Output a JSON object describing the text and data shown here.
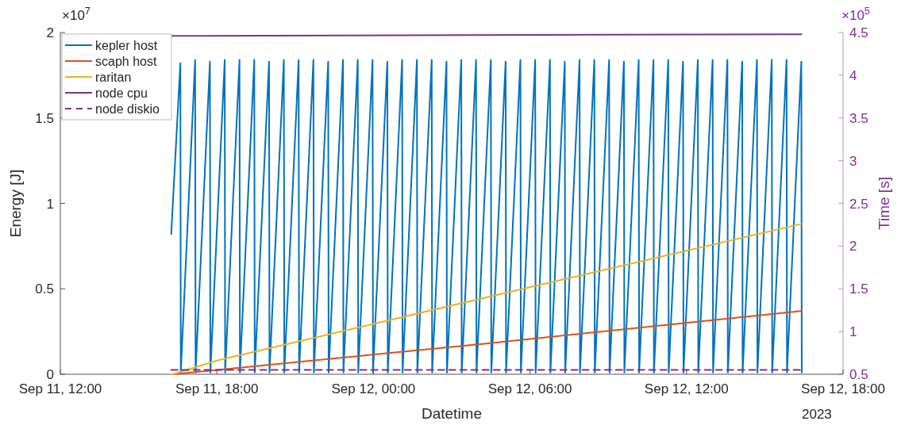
{
  "chart_data": {
    "type": "line",
    "xlabel": "Datetime",
    "ylabel": "Energy [J]",
    "y2label": "Time [s]",
    "annotations": [
      "×10$^{7}$",
      "×10$^{5}$",
      "2023"
    ],
    "xlim": [
      "2023-09-11T12:00",
      "2023-09-12T18:00"
    ],
    "xticks": [
      {
        "value": "2023-09-11T12:00",
        "label": "Sep 11, 12:00"
      },
      {
        "value": "2023-09-11T18:00",
        "label": "Sep 11, 18:00"
      },
      {
        "value": "2023-09-12T00:00",
        "label": "Sep 12, 00:00"
      },
      {
        "value": "2023-09-12T06:00",
        "label": "Sep 12, 06:00"
      },
      {
        "value": "2023-09-12T12:00",
        "label": "Sep 12, 12:00"
      },
      {
        "value": "2023-09-12T18:00",
        "label": "Sep 12, 18:00"
      }
    ],
    "ylim": [
      0,
      2
    ],
    "yticks": [
      0,
      0.5,
      1,
      1.5,
      2
    ],
    "y2lim": [
      0.5,
      4.5
    ],
    "y2ticks": [
      0.5,
      1,
      1.5,
      2,
      2.5,
      3,
      3.5,
      4,
      4.5
    ],
    "grid": false,
    "legend": "top left",
    "line_style": "solid",
    "marker": "none",
    "series": [
      {
        "name": "kepler host",
        "color": "#0072bd",
        "x": [
          "2023-09-11T16:15",
          "2023-09-11T16:36",
          "2023-09-11T16:37",
          "2023-09-11T17:10",
          "2023-09-11T17:11",
          "2023-09-11T17:44",
          "2023-09-11T17:45",
          "2023-09-11T18:18",
          "2023-09-11T18:19",
          "2023-09-11T18:52",
          "2023-09-11T18:53",
          "2023-09-11T19:26",
          "2023-09-11T19:27",
          "2023-09-11T20:00",
          "2023-09-11T20:01",
          "2023-09-11T20:34",
          "2023-09-11T20:35",
          "2023-09-11T21:08",
          "2023-09-11T21:09",
          "2023-09-11T21:42",
          "2023-09-11T21:43",
          "2023-09-11T22:16",
          "2023-09-11T22:17",
          "2023-09-11T22:50",
          "2023-09-11T22:51",
          "2023-09-11T23:24",
          "2023-09-11T23:25",
          "2023-09-11T23:58",
          "2023-09-11T23:59",
          "2023-09-12T00:32",
          "2023-09-12T00:33",
          "2023-09-12T01:06",
          "2023-09-12T01:07",
          "2023-09-12T01:40",
          "2023-09-12T01:41",
          "2023-09-12T02:14",
          "2023-09-12T02:15",
          "2023-09-12T02:48",
          "2023-09-12T02:49",
          "2023-09-12T03:22",
          "2023-09-12T03:23",
          "2023-09-12T03:56",
          "2023-09-12T03:57",
          "2023-09-12T04:30",
          "2023-09-12T04:31",
          "2023-09-12T05:04",
          "2023-09-12T05:05",
          "2023-09-12T05:38",
          "2023-09-12T05:39",
          "2023-09-12T06:12",
          "2023-09-12T06:13",
          "2023-09-12T06:46",
          "2023-09-12T06:47",
          "2023-09-12T07:20",
          "2023-09-12T07:21",
          "2023-09-12T07:54",
          "2023-09-12T07:55",
          "2023-09-12T08:28",
          "2023-09-12T08:29",
          "2023-09-12T09:02",
          "2023-09-12T09:03",
          "2023-09-12T09:36",
          "2023-09-12T09:37",
          "2023-09-12T10:10",
          "2023-09-12T10:11",
          "2023-09-12T10:44",
          "2023-09-12T10:45",
          "2023-09-12T11:18",
          "2023-09-12T11:19",
          "2023-09-12T11:52",
          "2023-09-12T11:53",
          "2023-09-12T12:26",
          "2023-09-12T12:27",
          "2023-09-12T13:00",
          "2023-09-12T13:01",
          "2023-09-12T13:34",
          "2023-09-12T13:35",
          "2023-09-12T14:08",
          "2023-09-12T14:09",
          "2023-09-12T14:42",
          "2023-09-12T14:43",
          "2023-09-12T15:16",
          "2023-09-12T15:17",
          "2023-09-12T15:50",
          "2023-09-12T15:51",
          "2023-09-12T16:24",
          "2023-09-12T16:25"
        ],
        "values": [
          0.82,
          1.82,
          0.01,
          1.84,
          0.01,
          1.83,
          0.01,
          1.84,
          0.01,
          1.84,
          0.01,
          1.84,
          0.01,
          1.83,
          0.01,
          1.84,
          0.01,
          1.84,
          0.01,
          1.84,
          0.01,
          1.83,
          0.01,
          1.84,
          0.01,
          1.84,
          0.01,
          1.84,
          0.01,
          1.83,
          0.01,
          1.84,
          0.01,
          1.84,
          0.01,
          1.84,
          0.01,
          1.83,
          0.01,
          1.84,
          0.01,
          1.84,
          0.01,
          1.84,
          0.01,
          1.83,
          0.01,
          1.84,
          0.01,
          1.84,
          0.01,
          1.84,
          0.01,
          1.83,
          0.01,
          1.84,
          0.01,
          1.84,
          0.01,
          1.84,
          0.01,
          1.83,
          0.01,
          1.84,
          0.01,
          1.84,
          0.01,
          1.84,
          0.01,
          1.83,
          0.01,
          1.84,
          0.01,
          1.84,
          0.01,
          1.84,
          0.01,
          1.83,
          0.01,
          1.84,
          0.01,
          1.84,
          0.01,
          1.84,
          0.01,
          1.83,
          0.01
        ]
      },
      {
        "name": "scaph host",
        "color": "#d95319",
        "x": [
          "2023-09-11T16:19",
          "2023-09-12T04:20",
          "2023-09-12T16:24"
        ],
        "values": [
          0,
          0.18,
          0.37
        ]
      },
      {
        "name": "raritan",
        "color": "#edb120",
        "x": [
          "2023-09-11T16:19",
          "2023-09-11T18:00",
          "2023-09-12T04:20",
          "2023-09-12T16:24"
        ],
        "values": [
          0,
          0.08,
          0.45,
          0.88
        ]
      },
      {
        "name": "node cpu",
        "color": "#7e2f8e",
        "axis": "y2",
        "x": [
          "2023-09-11T16:15",
          "2023-09-12T16:24"
        ],
        "values": [
          4.46,
          4.48
        ]
      },
      {
        "name": "node diskio",
        "color": "#7e2f8e",
        "axis": "y2",
        "line_style": "dashed",
        "x": [
          "2023-09-11T16:15",
          "2023-09-12T16:24"
        ],
        "values": [
          0.55,
          0.55
        ]
      }
    ]
  }
}
